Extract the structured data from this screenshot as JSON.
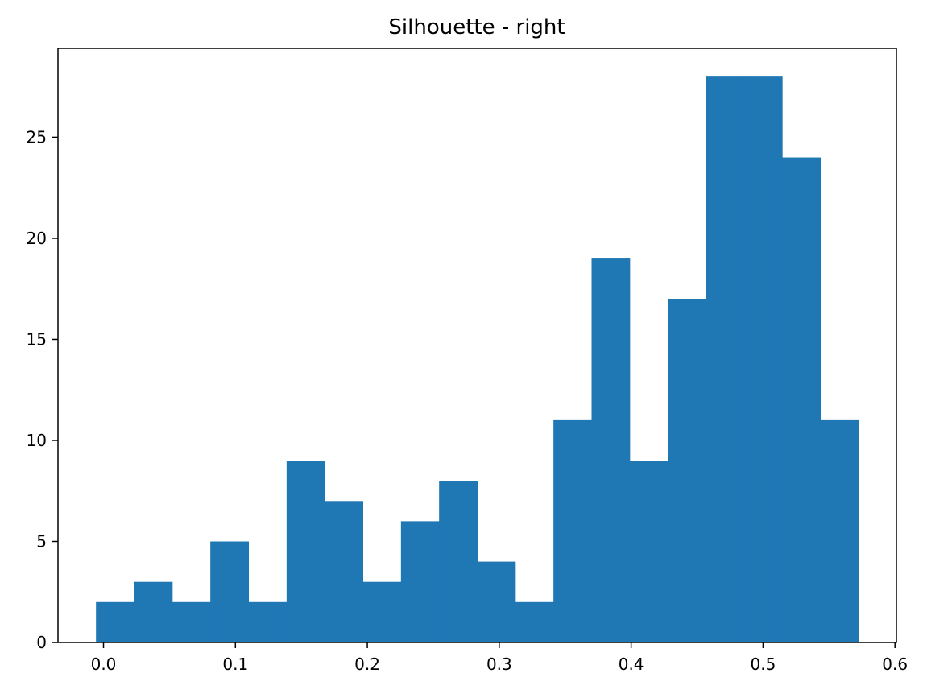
{
  "chart_data": {
    "type": "bar",
    "title": "Silhouette - right",
    "xlabel": "",
    "ylabel": "",
    "bin_edges": [
      -0.0057,
      0.0232,
      0.0521,
      0.081,
      0.1099,
      0.1388,
      0.1677,
      0.1966,
      0.2255,
      0.2544,
      0.2833,
      0.3122,
      0.3411,
      0.37,
      0.3989,
      0.4278,
      0.4567,
      0.4856,
      0.5145,
      0.5434,
      0.5723
    ],
    "values": [
      2,
      3,
      2,
      5,
      2,
      9,
      7,
      3,
      6,
      8,
      4,
      2,
      11,
      19,
      9,
      17,
      28,
      28,
      24,
      11
    ],
    "xlim": [
      -0.0345,
      0.6011
    ],
    "ylim": [
      0,
      29.4
    ],
    "xticks": [
      0.0,
      0.1,
      0.2,
      0.3,
      0.4,
      0.5,
      0.6
    ],
    "xtick_labels": [
      "0.0",
      "0.1",
      "0.2",
      "0.3",
      "0.4",
      "0.5",
      "0.6"
    ],
    "yticks": [
      0,
      5,
      10,
      15,
      20,
      25
    ],
    "ytick_labels": [
      "0",
      "5",
      "10",
      "15",
      "20",
      "25"
    ],
    "grid": false,
    "bar_color": "#1f77b4"
  }
}
